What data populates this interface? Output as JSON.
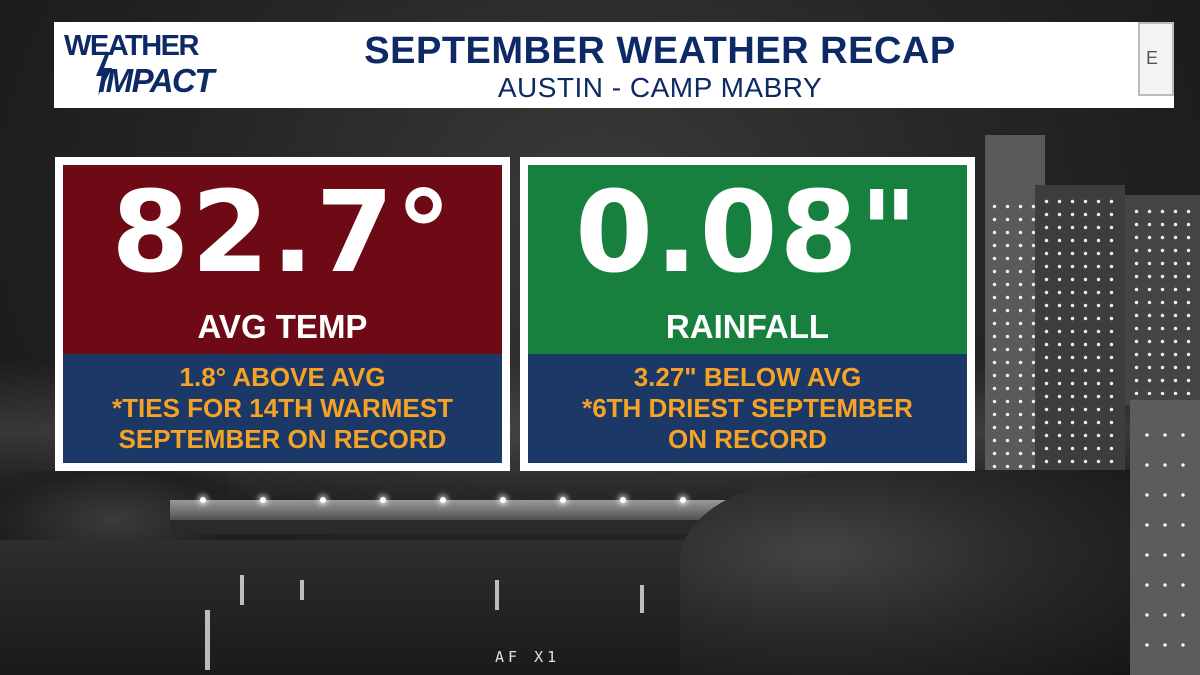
{
  "header": {
    "logo": {
      "line1": "WEATHER",
      "line2": "IMPACT"
    },
    "title": "SEPTEMBER WEATHER RECAP",
    "subtitle": "AUSTIN - CAMP MABRY",
    "side_tab_letter": "E"
  },
  "stats": [
    {
      "value": "82.7°",
      "label": "AVG TEMP",
      "notes": [
        "1.8° ABOVE AVG",
        "*TIES FOR 14TH WARMEST",
        "SEPTEMBER ON RECORD"
      ]
    },
    {
      "value": "0.08\"",
      "label": "RAINFALL",
      "notes": [
        "3.27\" BELOW AVG",
        "*6TH DRIEST SEPTEMBER",
        "ON RECORD"
      ]
    }
  ],
  "camera_label": "AF X1",
  "colors": {
    "brand_navy": "#0d2a66",
    "temp_panel": "#6e0a16",
    "rain_panel": "#18803f",
    "note_panel": "#1b3866",
    "note_text": "#f4a326"
  }
}
